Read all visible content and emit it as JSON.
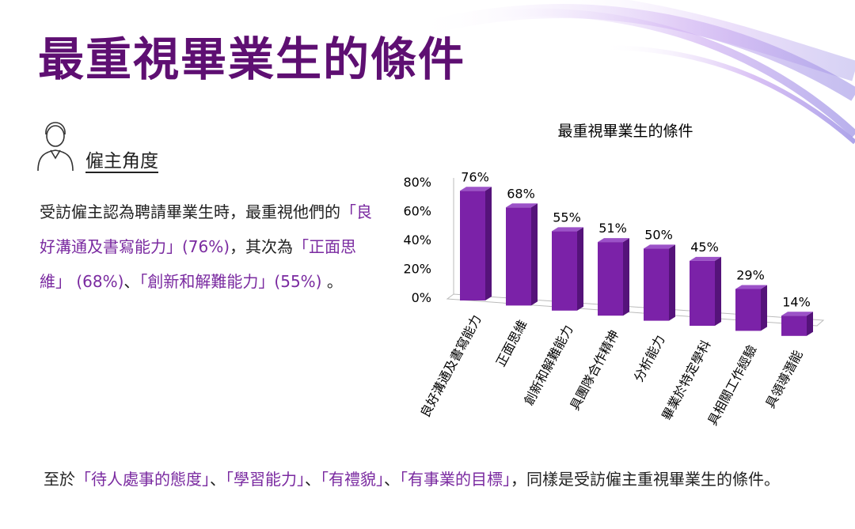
{
  "title": "最重視畢業生的條件",
  "section": "僱主角度",
  "paragraphs": [
    {
      "segments": [
        {
          "text": "受訪僱主認為聘請畢業生時，最重視他們的",
          "highlight": false
        },
        {
          "text": "「良好溝通及書寫能力」(76%)",
          "highlight": true
        },
        {
          "text": "，其次為",
          "highlight": false
        },
        {
          "text": "「正面思維」 (68%)",
          "highlight": true
        },
        {
          "text": "、",
          "highlight": false
        },
        {
          "text": "「創新和解難能力」(55%)",
          "highlight": true
        },
        {
          "text": " 。",
          "highlight": false
        }
      ]
    },
    {
      "segments": [
        {
          "text": "至於",
          "highlight": false
        },
        {
          "text": "「待人處事的態度」",
          "highlight": true
        },
        {
          "text": "、",
          "highlight": false
        },
        {
          "text": "「學習能力」",
          "highlight": true
        },
        {
          "text": "、",
          "highlight": false
        },
        {
          "text": "「有禮貌」",
          "highlight": true
        },
        {
          "text": "、",
          "highlight": false
        },
        {
          "text": "「有事業的目標」",
          "highlight": true
        },
        {
          "text": "，同樣是受訪僱主重視畢業生的條件。",
          "highlight": false
        }
      ]
    }
  ],
  "chart_data": {
    "type": "bar",
    "title": "最重視畢業生的條件",
    "categories": [
      "良好溝通及書寫能力",
      "正面思維",
      "創新和解難能力",
      "具團隊合作精神",
      "分析能力",
      "畢業於特定學科",
      "具相關工作經驗",
      "具領導潛能"
    ],
    "values": [
      76,
      68,
      55,
      51,
      50,
      45,
      29,
      14
    ],
    "value_labels": [
      "76%",
      "68%",
      "55%",
      "51%",
      "50%",
      "45%",
      "29%",
      "14%"
    ],
    "color": "#7b22a8",
    "ylim": [
      0,
      80
    ],
    "yticks": [
      {
        "value": 0,
        "label": "0%"
      },
      {
        "value": 20,
        "label": "20%"
      },
      {
        "value": 40,
        "label": "40%"
      },
      {
        "value": 60,
        "label": "60%"
      },
      {
        "value": 80,
        "label": "80%"
      }
    ],
    "grid": false
  }
}
